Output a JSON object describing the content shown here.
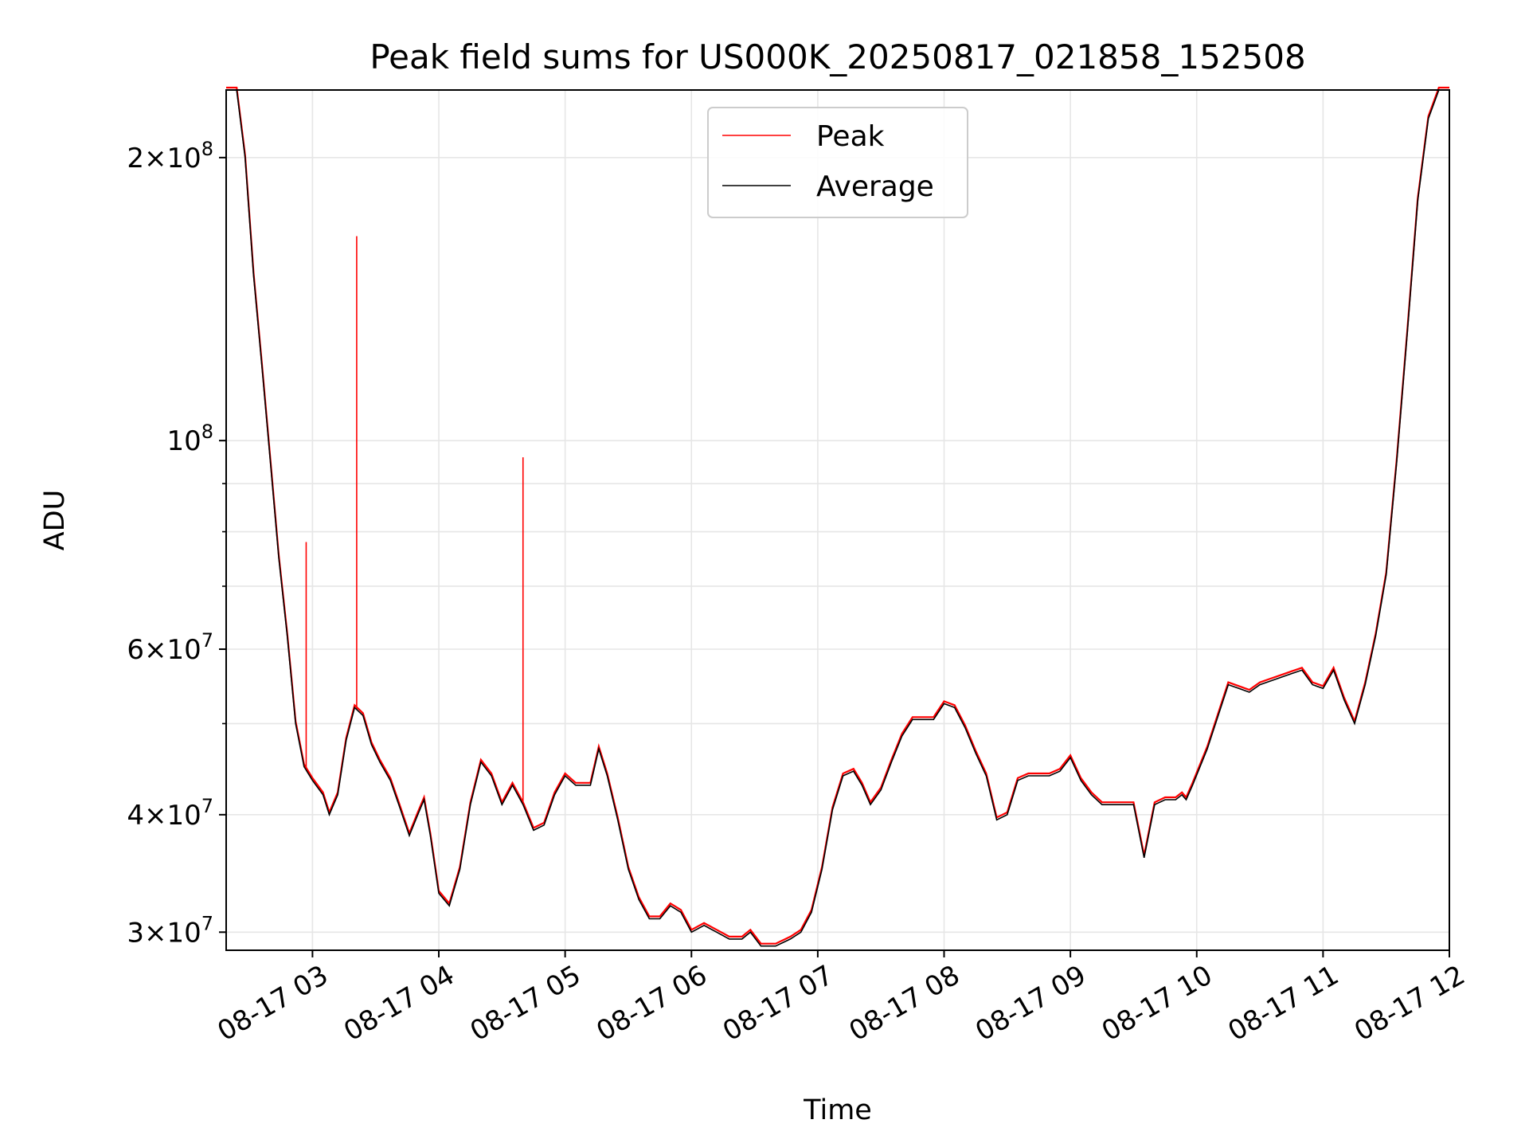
{
  "chart_data": {
    "type": "line",
    "title": "Peak field sums for US000K_20250817_021858_152508",
    "xlabel": "Time",
    "ylabel": "ADU",
    "yscale": "log",
    "ylim": [
      28700000,
      236000000
    ],
    "xlim": [
      "2025-08-17 02:19",
      "2025-08-17 12:00"
    ],
    "grid": true,
    "legend_position": "upper center",
    "x_tick_labels": [
      "08-17 03",
      "08-17 04",
      "08-17 05",
      "08-17 06",
      "08-17 07",
      "08-17 08",
      "08-17 09",
      "08-17 10",
      "08-17 11",
      "08-17 12"
    ],
    "x_tick_values": [
      "2025-08-17 03:00",
      "2025-08-17 04:00",
      "2025-08-17 05:00",
      "2025-08-17 06:00",
      "2025-08-17 07:00",
      "2025-08-17 08:00",
      "2025-08-17 09:00",
      "2025-08-17 10:00",
      "2025-08-17 11:00",
      "2025-08-17 12:00"
    ],
    "y_ticks": [
      {
        "value": 30000000,
        "mant": "3",
        "exp": "7"
      },
      {
        "value": 40000000,
        "mant": "4",
        "exp": "7"
      },
      {
        "value": 60000000,
        "mant": "6",
        "exp": "7"
      },
      {
        "value": 100000000,
        "mant": "",
        "exp": "8"
      },
      {
        "value": 200000000,
        "mant": "2",
        "exp": "8"
      }
    ],
    "y_minor_ticks": [
      50000000,
      70000000,
      80000000,
      90000000
    ],
    "series": [
      {
        "name": "Average",
        "color": "#000000",
        "x": [
          "2025-08-17 02:19",
          "2025-08-17 02:24",
          "2025-08-17 02:28",
          "2025-08-17 02:32",
          "2025-08-17 02:36",
          "2025-08-17 02:40",
          "2025-08-17 02:44",
          "2025-08-17 02:48",
          "2025-08-17 02:52",
          "2025-08-17 02:56",
          "2025-08-17 03:00",
          "2025-08-17 03:05",
          "2025-08-17 03:08",
          "2025-08-17 03:12",
          "2025-08-17 03:16",
          "2025-08-17 03:20",
          "2025-08-17 03:24",
          "2025-08-17 03:28",
          "2025-08-17 03:32",
          "2025-08-17 03:37",
          "2025-08-17 03:41",
          "2025-08-17 03:46",
          "2025-08-17 03:50",
          "2025-08-17 03:53",
          "2025-08-17 03:56",
          "2025-08-17 04:00",
          "2025-08-17 04:05",
          "2025-08-17 04:10",
          "2025-08-17 04:15",
          "2025-08-17 04:20",
          "2025-08-17 04:25",
          "2025-08-17 04:30",
          "2025-08-17 04:35",
          "2025-08-17 04:40",
          "2025-08-17 04:45",
          "2025-08-17 04:50",
          "2025-08-17 04:55",
          "2025-08-17 05:00",
          "2025-08-17 05:05",
          "2025-08-17 05:12",
          "2025-08-17 05:16",
          "2025-08-17 05:20",
          "2025-08-17 05:25",
          "2025-08-17 05:30",
          "2025-08-17 05:35",
          "2025-08-17 05:40",
          "2025-08-17 05:45",
          "2025-08-17 05:50",
          "2025-08-17 05:55",
          "2025-08-17 06:00",
          "2025-08-17 06:06",
          "2025-08-17 06:12",
          "2025-08-17 06:18",
          "2025-08-17 06:24",
          "2025-08-17 06:28",
          "2025-08-17 06:33",
          "2025-08-17 06:40",
          "2025-08-17 06:47",
          "2025-08-17 06:52",
          "2025-08-17 06:57",
          "2025-08-17 07:02",
          "2025-08-17 07:07",
          "2025-08-17 07:12",
          "2025-08-17 07:17",
          "2025-08-17 07:21",
          "2025-08-17 07:25",
          "2025-08-17 07:30",
          "2025-08-17 07:35",
          "2025-08-17 07:40",
          "2025-08-17 07:45",
          "2025-08-17 07:50",
          "2025-08-17 07:55",
          "2025-08-17 08:00",
          "2025-08-17 08:05",
          "2025-08-17 08:10",
          "2025-08-17 08:15",
          "2025-08-17 08:20",
          "2025-08-17 08:25",
          "2025-08-17 08:30",
          "2025-08-17 08:35",
          "2025-08-17 08:40",
          "2025-08-17 08:45",
          "2025-08-17 08:50",
          "2025-08-17 08:55",
          "2025-08-17 09:00",
          "2025-08-17 09:05",
          "2025-08-17 09:10",
          "2025-08-17 09:15",
          "2025-08-17 09:20",
          "2025-08-17 09:25",
          "2025-08-17 09:30",
          "2025-08-17 09:35",
          "2025-08-17 09:40",
          "2025-08-17 09:45",
          "2025-08-17 09:50",
          "2025-08-17 09:53",
          "2025-08-17 09:55",
          "2025-08-17 09:58",
          "2025-08-17 10:05",
          "2025-08-17 10:15",
          "2025-08-17 10:20",
          "2025-08-17 10:25",
          "2025-08-17 10:30",
          "2025-08-17 10:35",
          "2025-08-17 10:40",
          "2025-08-17 10:45",
          "2025-08-17 10:50",
          "2025-08-17 10:55",
          "2025-08-17 11:00",
          "2025-08-17 11:05",
          "2025-08-17 11:10",
          "2025-08-17 11:15",
          "2025-08-17 11:20",
          "2025-08-17 11:25",
          "2025-08-17 11:30",
          "2025-08-17 11:35",
          "2025-08-17 11:40",
          "2025-08-17 11:45",
          "2025-08-17 11:50",
          "2025-08-17 11:55",
          "2025-08-17 12:00"
        ],
        "y": [
          236000000,
          236000000,
          200000000,
          150000000,
          120000000,
          95000000,
          75000000,
          62000000,
          50000000,
          45000000,
          43500000,
          42000000,
          40000000,
          42000000,
          48000000,
          52000000,
          51000000,
          47500000,
          45500000,
          43500000,
          41000000,
          38000000,
          40000000,
          41500000,
          38000000,
          33000000,
          32000000,
          35000000,
          41000000,
          45500000,
          44000000,
          41000000,
          43000000,
          41000000,
          38500000,
          39000000,
          42000000,
          44000000,
          43000000,
          43000000,
          47000000,
          44000000,
          39500000,
          35000000,
          32500000,
          31000000,
          31000000,
          32000000,
          31500000,
          30000000,
          30500000,
          30000000,
          29500000,
          29500000,
          30000000,
          29000000,
          29000000,
          29500000,
          30000000,
          31500000,
          35000000,
          40500000,
          44000000,
          44500000,
          43000000,
          41000000,
          42500000,
          45500000,
          48500000,
          50500000,
          50500000,
          50500000,
          52500000,
          52000000,
          49500000,
          46500000,
          44000000,
          39500000,
          40000000,
          43500000,
          44000000,
          44000000,
          44000000,
          44500000,
          46000000,
          43500000,
          42000000,
          41000000,
          41000000,
          41000000,
          41000000,
          36000000,
          41000000,
          41500000,
          41500000,
          42000000,
          41500000,
          43000000,
          47000000,
          55000000,
          54500000,
          54000000,
          55000000,
          55500000,
          56000000,
          56500000,
          57000000,
          55000000,
          54500000,
          57000000,
          53000000,
          50000000,
          55000000,
          62000000,
          72000000,
          95000000,
          130000000,
          180000000,
          220000000,
          236000000,
          236000000
        ]
      },
      {
        "name": "Peak",
        "color": "#ff0000",
        "spikes": [
          {
            "x": "2025-08-17 02:57",
            "y": 78000000
          },
          {
            "x": "2025-08-17 03:21",
            "y": 165000000
          },
          {
            "x": "2025-08-17 04:40",
            "y": 96000000
          }
        ]
      }
    ]
  }
}
